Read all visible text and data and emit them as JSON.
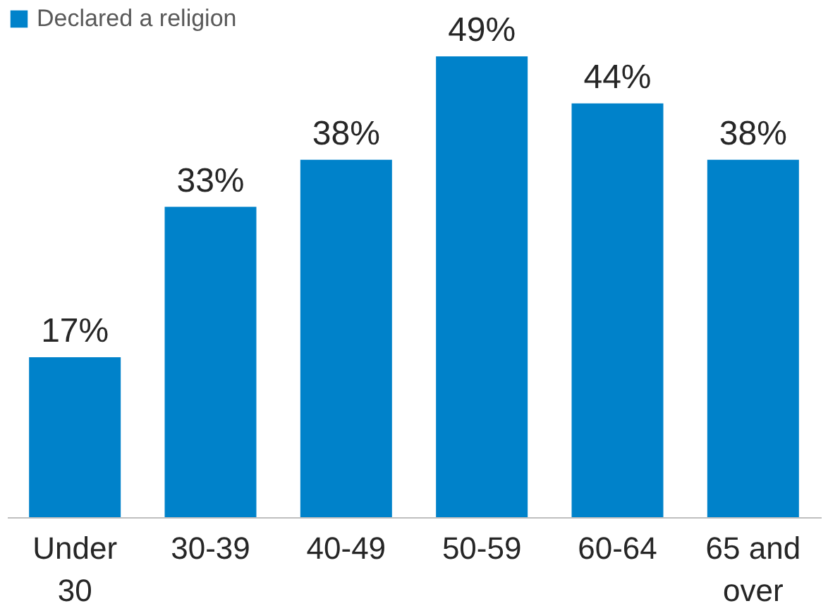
{
  "chart_data": {
    "type": "bar",
    "categories": [
      "Under 30",
      "30-39",
      "40-49",
      "50-59",
      "60-64",
      "65 and over"
    ],
    "series": [
      {
        "name": "Declared a religion",
        "color": "#0082ca",
        "values": [
          17,
          33,
          38,
          49,
          44,
          38
        ],
        "value_labels": [
          "17%",
          "33%",
          "38%",
          "49%",
          "44%",
          "38%"
        ]
      }
    ],
    "tick_labels": "x",
    "legend": "top",
    "grid": false
  }
}
